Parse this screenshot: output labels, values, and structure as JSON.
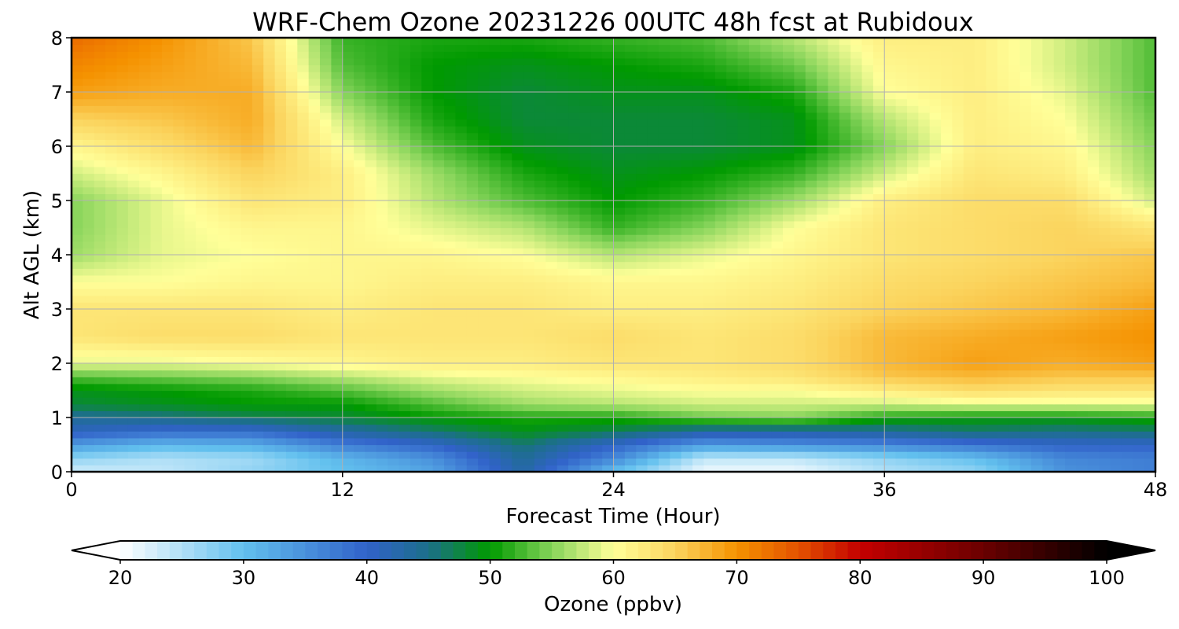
{
  "chart_data": {
    "type": "heatmap",
    "title": "WRF-Chem Ozone  20231226 00UTC 48h fcst at Rubidoux",
    "xlabel": "Forecast Time (Hour)",
    "ylabel": "Alt AGL (km)",
    "xlim": [
      0,
      48
    ],
    "ylim": [
      0,
      8
    ],
    "x_ticks": [
      "0",
      "12",
      "24",
      "36",
      "48"
    ],
    "y_ticks": [
      "0",
      "1",
      "2",
      "3",
      "4",
      "5",
      "6",
      "7",
      "8"
    ],
    "grid": true,
    "x": [
      0,
      4,
      8,
      12,
      16,
      20,
      24,
      28,
      32,
      36,
      40,
      44,
      48
    ],
    "y": [
      0,
      0.25,
      0.5,
      0.75,
      1,
      1.25,
      1.5,
      1.75,
      2,
      2.5,
      3,
      3.5,
      4,
      4.5,
      5,
      5.5,
      6,
      6.5,
      7,
      7.5,
      8
    ],
    "z": [
      [
        23,
        24,
        27,
        30,
        33,
        43,
        30,
        21,
        21,
        25,
        27,
        35,
        37
      ],
      [
        27,
        25,
        26,
        31,
        35,
        44,
        36,
        24,
        24,
        27,
        30,
        36,
        37
      ],
      [
        34,
        31,
        32,
        37,
        40,
        46,
        40,
        34,
        35,
        36,
        38,
        40,
        40
      ],
      [
        41,
        39,
        39,
        43,
        46,
        49,
        47,
        43,
        43,
        44,
        46,
        45,
        46
      ],
      [
        44,
        45,
        47,
        48,
        50,
        51,
        51,
        54,
        55,
        51,
        50,
        50,
        51
      ],
      [
        48,
        49,
        50,
        50,
        53,
        56,
        57,
        58,
        58,
        58,
        59,
        59,
        59
      ],
      [
        49,
        50,
        51,
        53,
        56,
        58,
        59,
        60,
        60,
        62,
        64,
        63,
        63
      ],
      [
        53,
        54,
        55,
        57,
        59,
        60,
        61,
        62,
        63,
        66,
        67,
        66,
        66
      ],
      [
        59,
        59,
        60,
        61,
        62,
        62,
        63,
        63,
        64,
        67,
        69,
        68,
        69
      ],
      [
        63,
        64,
        64,
        63,
        63,
        63,
        64,
        63,
        64,
        67,
        68,
        69,
        70
      ],
      [
        63,
        63,
        63,
        62,
        63,
        63,
        62,
        62,
        63,
        65,
        66,
        67,
        69
      ],
      [
        60,
        60,
        61,
        61,
        62,
        62,
        61,
        61,
        62,
        64,
        65,
        66,
        67
      ],
      [
        56,
        59,
        60,
        61,
        61,
        60,
        57,
        59,
        61,
        63,
        64,
        65,
        66
      ],
      [
        55,
        59,
        61,
        61,
        59,
        57,
        52,
        55,
        60,
        63,
        64,
        65,
        63
      ],
      [
        55,
        59,
        63,
        62,
        57,
        53,
        50,
        52,
        56,
        62,
        64,
        64,
        58
      ],
      [
        58,
        61,
        65,
        62,
        56,
        51,
        49,
        50,
        52,
        58,
        63,
        62,
        56
      ],
      [
        61,
        64,
        67,
        60,
        53,
        49,
        48,
        48,
        49,
        55,
        62,
        61,
        55
      ],
      [
        65,
        66,
        68,
        58,
        51,
        48,
        48,
        48,
        49,
        57,
        62,
        60,
        54
      ],
      [
        69,
        68,
        68,
        55,
        50,
        48,
        49,
        49,
        51,
        60,
        62,
        59,
        53
      ],
      [
        71,
        69,
        67,
        53,
        50,
        49,
        50,
        51,
        54,
        61,
        62,
        58,
        53
      ],
      [
        73,
        70,
        66,
        52,
        51,
        51,
        52,
        53,
        57,
        62,
        62,
        58,
        53
      ]
    ],
    "colorbar": {
      "label": "Ozone  (ppbv)",
      "min": 20,
      "max": 100,
      "extend": "both",
      "ticks": [
        "20",
        "30",
        "40",
        "50",
        "60",
        "70",
        "80",
        "90",
        "100"
      ],
      "stops": [
        {
          "v": 20,
          "c": "#ffffff"
        },
        {
          "v": 30,
          "c": "#62c0ee"
        },
        {
          "v": 40,
          "c": "#3162c9"
        },
        {
          "v": 45,
          "c": "#1c6f8a"
        },
        {
          "v": 50,
          "c": "#009a00"
        },
        {
          "v": 55,
          "c": "#86d45a"
        },
        {
          "v": 60,
          "c": "#ffff99"
        },
        {
          "v": 65,
          "c": "#fbd45e"
        },
        {
          "v": 70,
          "c": "#f59200"
        },
        {
          "v": 75,
          "c": "#e45200"
        },
        {
          "v": 80,
          "c": "#c40000"
        },
        {
          "v": 90,
          "c": "#6a0000"
        },
        {
          "v": 100,
          "c": "#000000"
        }
      ]
    }
  }
}
